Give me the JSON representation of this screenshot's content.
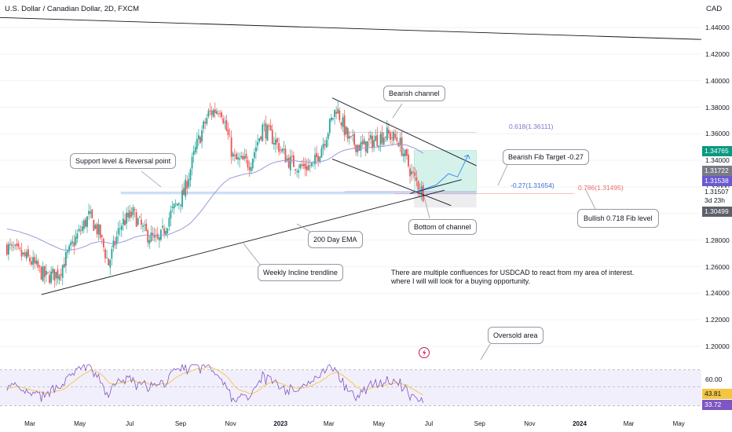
{
  "header": {
    "title": "U.S. Dollar / Canadian Dollar, 2D, FXCM",
    "currency": "CAD"
  },
  "colors": {
    "up": "#26a69a",
    "down": "#ef5350",
    "drawing": "#131722",
    "ema": "#9c9ad6",
    "support": "#bcd4f5",
    "rsi": "#7e57c2",
    "rsi_ma": "#f5c542",
    "rsi_band": "#f2effc"
  },
  "annotations": {
    "support": "Support level & Reversal point",
    "bearish_channel": "Bearish channel",
    "bearish_fib_target": "Bearish Fib Target -0.27",
    "bottom_channel": "Bottom of channel",
    "bullish_fib": "Bullish 0.718 Fib level",
    "ema200": "200 Day EMA",
    "weekly_trendline": "Weekly Incline trendline",
    "oversold": "Oversold area",
    "comment_line1": "There are multiple confluences for USDCAD to react from my area of interest.",
    "comment_line2": "where I will will look for a buying opportunity."
  },
  "fib": {
    "f0618": "0.618(1.36111)",
    "fneg027": "-0.27(1.31654)",
    "f0786": "0.786(1.31495)"
  },
  "price_labels": [
    {
      "text": "1.34765",
      "color": "#089981",
      "variant": "solid"
    },
    {
      "text": "1.31722",
      "color": "#787b86",
      "variant": "solid"
    },
    {
      "text": "1.31538",
      "color": "#6a5acd",
      "variant": "solid"
    },
    {
      "text": "1.31507",
      "color": "#ffffff",
      "variant": "plain"
    },
    {
      "text": "3d 23h",
      "color": "#ffffff",
      "variant": "plain"
    },
    {
      "text": "1.30499",
      "color": "#5d606b",
      "variant": "solid"
    }
  ],
  "rsi_labels": {
    "upper": "60.00",
    "ma": "43.81",
    "rsi": "33.72"
  },
  "chart_data": {
    "type": "candlestick",
    "symbol": "U.S. Dollar / Canadian Dollar, 2D, FXCM",
    "y_ticks": [
      "1.44000",
      "1.42000",
      "1.40000",
      "1.38000",
      "1.36000",
      "1.34000",
      "1.32000",
      "1.30000",
      "1.28000",
      "1.26000",
      "1.24000",
      "1.22000",
      "1.20000"
    ],
    "ylim": [
      1.19,
      1.455
    ],
    "x_ticks": [
      "Mar",
      "May",
      "Jul",
      "Sep",
      "Nov",
      "2023",
      "Mar",
      "May",
      "Jul",
      "Sep",
      "Nov",
      "2024",
      "Mar",
      "May"
    ],
    "close_path": [
      [
        "2022-02-01",
        1.275
      ],
      [
        "2022-03-01",
        1.265
      ],
      [
        "2022-03-20",
        1.252
      ],
      [
        "2022-04-05",
        1.255
      ],
      [
        "2022-04-25",
        1.28
      ],
      [
        "2022-05-12",
        1.298
      ],
      [
        "2022-05-25",
        1.285
      ],
      [
        "2022-06-05",
        1.262
      ],
      [
        "2022-06-20",
        1.292
      ],
      [
        "2022-07-05",
        1.3
      ],
      [
        "2022-07-20",
        1.285
      ],
      [
        "2022-08-05",
        1.278
      ],
      [
        "2022-08-20",
        1.3
      ],
      [
        "2022-09-05",
        1.315
      ],
      [
        "2022-09-20",
        1.35
      ],
      [
        "2022-10-05",
        1.375
      ],
      [
        "2022-10-20",
        1.38
      ],
      [
        "2022-11-05",
        1.34
      ],
      [
        "2022-11-25",
        1.338
      ],
      [
        "2022-12-10",
        1.365
      ],
      [
        "2022-12-25",
        1.355
      ],
      [
        "2023-01-10",
        1.34
      ],
      [
        "2023-01-25",
        1.335
      ],
      [
        "2023-02-10",
        1.336
      ],
      [
        "2023-02-25",
        1.358
      ],
      [
        "2023-03-10",
        1.38
      ],
      [
        "2023-03-25",
        1.355
      ],
      [
        "2023-04-10",
        1.35
      ],
      [
        "2023-04-25",
        1.355
      ],
      [
        "2023-05-10",
        1.36
      ],
      [
        "2023-05-25",
        1.355
      ],
      [
        "2023-06-10",
        1.33
      ],
      [
        "2023-06-24",
        1.3154
      ]
    ],
    "rsi": {
      "ylim": [
        20,
        80
      ],
      "upper": 60.0,
      "lower": 30.0,
      "last": 33.72,
      "ma_last": 43.81
    }
  }
}
